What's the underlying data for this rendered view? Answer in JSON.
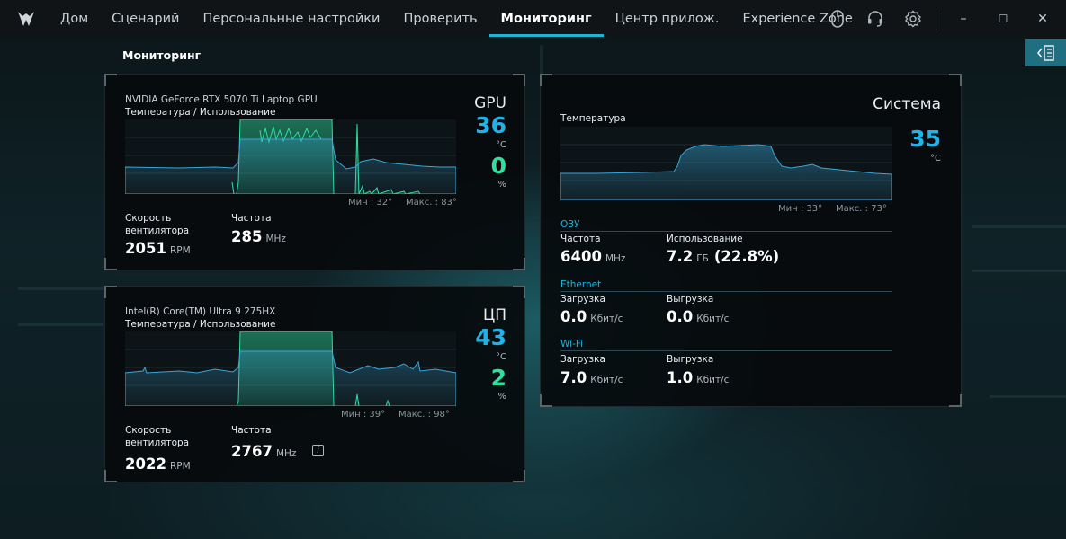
{
  "nav": {
    "items": [
      "Дом",
      "Сценарий",
      "Персональные настройки",
      "Проверить",
      "Мониторинг",
      "Центр прилож.",
      "Experience Zone"
    ],
    "active": "Мониторинг"
  },
  "window_controls": {
    "minimize": "–",
    "maximize": "☐",
    "close": "✕"
  },
  "page": {
    "title": "Мониторинг"
  },
  "gpu": {
    "name": "NVIDIA GeForce RTX 5070 Ti Laptop GPU",
    "chart_label": "Температура / Использование",
    "min": "Мин : 32°",
    "max": "Макс. : 83°",
    "title": "GPU",
    "temp": "36",
    "temp_unit": "°C",
    "usage": "0",
    "usage_unit": "%",
    "fan_label": "Скорость вентилятора",
    "fan_value": "2051",
    "fan_unit": "RPM",
    "freq_label": "Частота",
    "freq_value": "285",
    "freq_unit": "MHz"
  },
  "cpu": {
    "name": "Intel(R) Core(TM) Ultra 9 275HX",
    "chart_label": "Температура / Использование",
    "min": "Мин : 39°",
    "max": "Макс. : 98°",
    "title": "ЦП",
    "temp": "43",
    "temp_unit": "°C",
    "usage": "2",
    "usage_unit": "%",
    "fan_label": "Скорость вентилятора",
    "fan_value": "2022",
    "fan_unit": "RPM",
    "freq_label": "Частота",
    "freq_value": "2767",
    "freq_unit": "MHz",
    "info_icon": "i"
  },
  "system": {
    "title": "Система",
    "chart_label": "Температура",
    "temp": "35",
    "temp_unit": "°C",
    "min": "Мин : 33°",
    "max": "Макс. : 73°",
    "ram": {
      "section": "ОЗУ",
      "freq_label": "Частота",
      "freq_value": "6400",
      "freq_unit": "MHz",
      "usage_label": "Использование",
      "usage_value": "7.2",
      "usage_unit": "ГБ",
      "usage_percent": "(22.8%)"
    },
    "ethernet": {
      "section": "Ethernet",
      "down_label": "Загрузка",
      "down_value": "0.0",
      "down_unit": "Кбит/с",
      "up_label": "Выгрузка",
      "up_value": "0.0",
      "up_unit": "Кбит/с"
    },
    "wifi": {
      "section": "Wi-Fi",
      "down_label": "Загрузка",
      "down_value": "7.0",
      "down_unit": "Кбит/с",
      "up_label": "Выгрузка",
      "up_value": "1.0",
      "up_unit": "Кбит/с"
    }
  },
  "colors": {
    "accent": "#1fb3d6",
    "temp": "#1fb3e8",
    "usage": "#2de0a0",
    "line_temp": "#3aa6d8",
    "line_usage": "#2de0a0"
  }
}
